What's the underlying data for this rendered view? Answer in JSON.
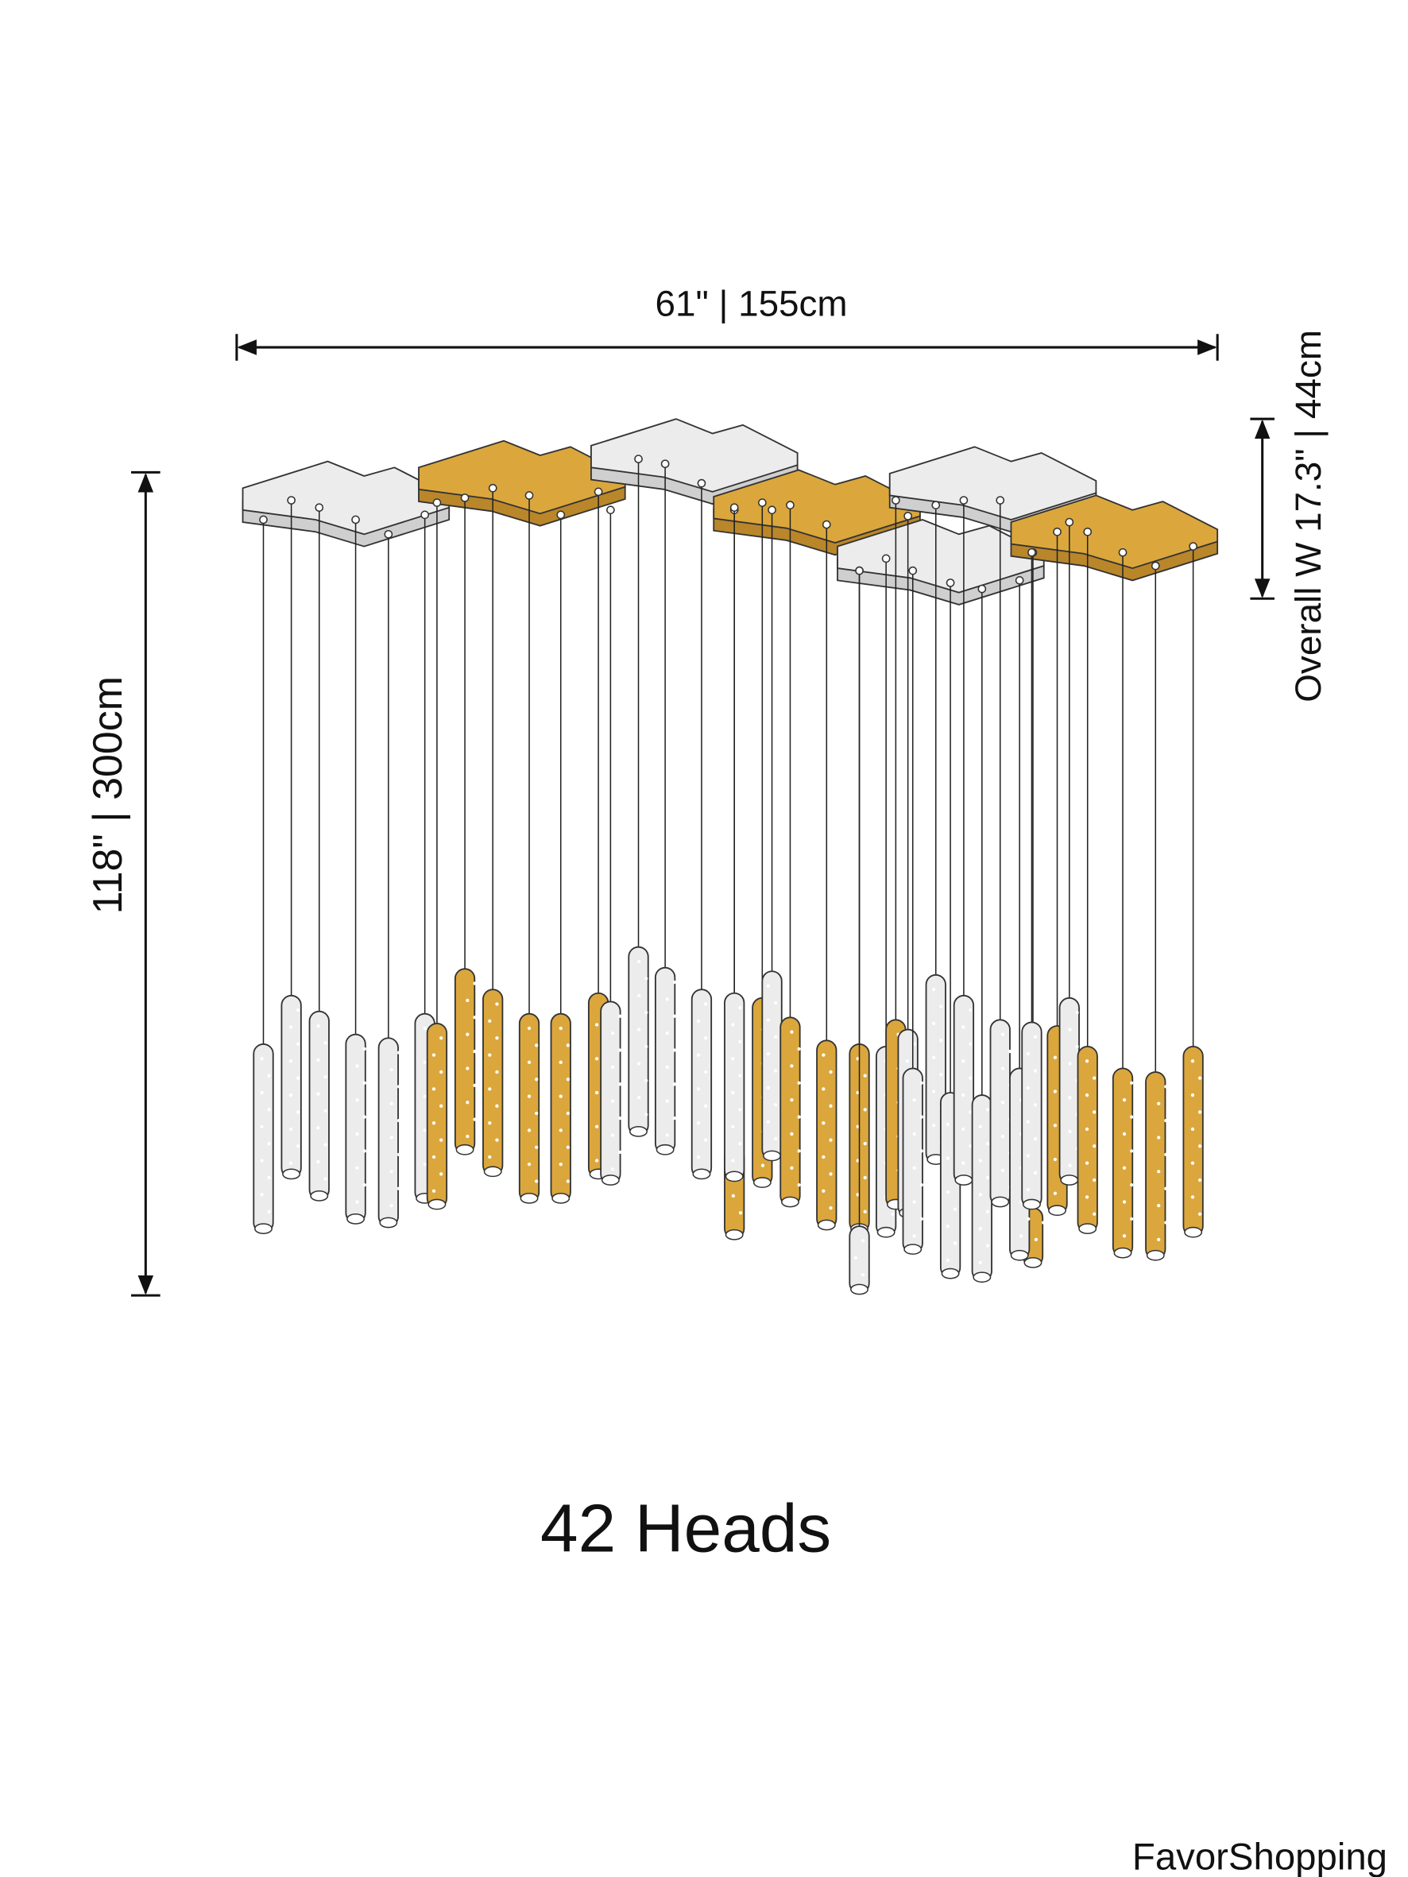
{
  "dimensions": {
    "width": "61\" | 155cm",
    "depth": "Overall W 17.3\" | 44cm",
    "height": "118\" | 300cm"
  },
  "caption": "42 Heads",
  "brand": "FavorShopping"
}
